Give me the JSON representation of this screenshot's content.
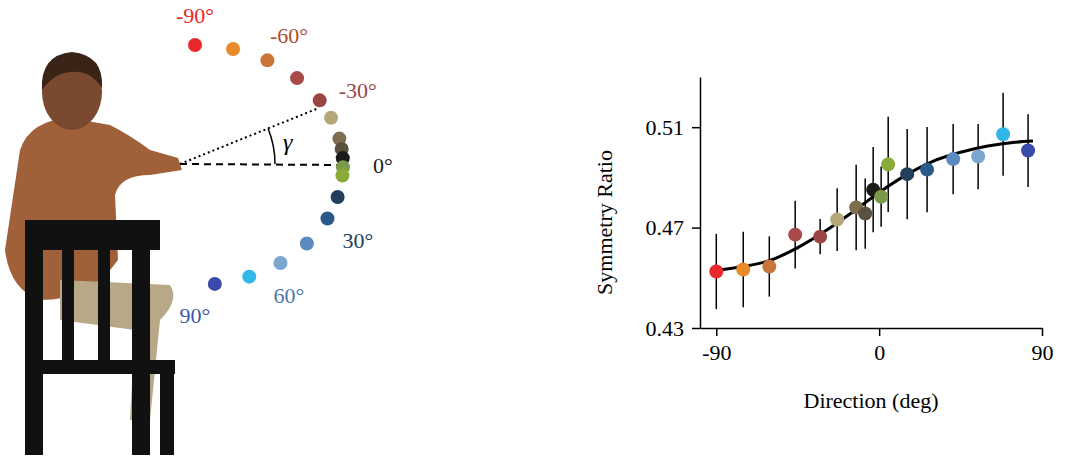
{
  "chart_data": {
    "type": "scatter",
    "x_label": "Direction (deg)",
    "y_label": "Symmetry Ratio",
    "xlim": [
      -99,
      90
    ],
    "ylim": [
      0.43,
      0.53
    ],
    "xticks": [
      -90,
      0,
      90
    ],
    "yticks": [
      0.43,
      0.47,
      0.51
    ],
    "series": [
      {
        "type": "scatter",
        "marker": "circle",
        "x": [
          -90,
          -75.1,
          -60.7,
          -46.4,
          -32.6,
          -23.2,
          -12.7,
          -7.7,
          -3.3,
          1.1,
          5.0,
          15.5,
          26.5,
          40.9,
          54.7,
          68.5,
          82.3
        ],
        "values": [
          0.4525,
          0.4533,
          0.4545,
          0.4672,
          0.4664,
          0.4732,
          0.478,
          0.4756,
          0.4851,
          0.4823,
          0.4952,
          0.4913,
          0.4931,
          0.4973,
          0.4983,
          0.5072,
          0.5007
        ],
        "errors": [
          0.015,
          0.015,
          0.012,
          0.0135,
          0.007,
          0.0125,
          0.017,
          0.014,
          0.017,
          0.012,
          0.019,
          0.018,
          0.017,
          0.014,
          0.013,
          0.0165,
          0.0145
        ],
        "colors": [
          "#e8282a",
          "#e8892a",
          "#c9753a",
          "#a84a4a",
          "#9a4444",
          "#b5a878",
          "#7a6e4e",
          "#5a5040",
          "#1a1a1a",
          "#7a9a4a",
          "#8aaa3a",
          "#22405e",
          "#2a5a8a",
          "#5a8ac0",
          "#7aa6d0",
          "#30b8e8",
          "#3a4aa8"
        ]
      },
      {
        "type": "line",
        "color": "#000000",
        "line_style": "solid",
        "x": [
          -90,
          -75,
          -60,
          -45,
          -30,
          -15,
          0,
          15,
          30,
          45,
          60,
          75,
          85
        ],
        "values": [
          0.453,
          0.4545,
          0.457,
          0.462,
          0.4685,
          0.476,
          0.484,
          0.491,
          0.4965,
          0.5,
          0.5025,
          0.504,
          0.5045
        ]
      }
    ]
  },
  "diagram": {
    "angle_symbol": "γ",
    "angle_labels": [
      {
        "value": -90,
        "label": "-90°",
        "color": "#e8282a"
      },
      {
        "value": -60,
        "label": "-60°",
        "color": "#a8502e"
      },
      {
        "value": -30,
        "label": "-30°",
        "color": "#9a4444"
      },
      {
        "value": 0,
        "label": "0°",
        "color": "#1a1a1a"
      },
      {
        "value": 30,
        "label": "30°",
        "color": "#22405e"
      },
      {
        "value": 60,
        "label": "60°",
        "color": "#4a78a8"
      },
      {
        "value": 90,
        "label": "90°",
        "color": "#3a5aa8"
      }
    ]
  }
}
